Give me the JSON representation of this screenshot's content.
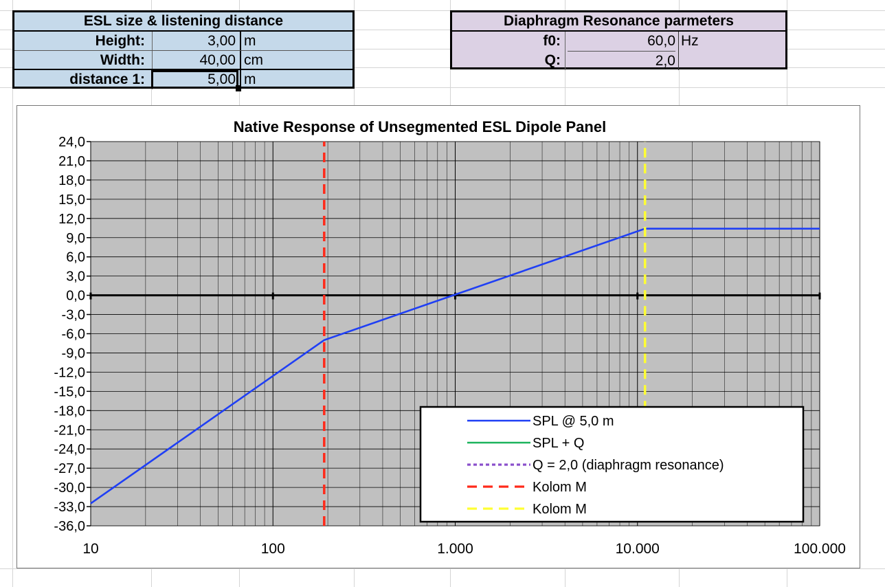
{
  "size_table": {
    "title": "ESL size & listening distance",
    "rows": [
      {
        "label": "Height:",
        "value": "3,00",
        "unit": "m"
      },
      {
        "label": "Width:",
        "value": "40,00",
        "unit": "cm"
      },
      {
        "label": "distance 1:",
        "value": "5,00",
        "unit": "m"
      }
    ]
  },
  "resonance_table": {
    "title": "Diaphragm Resonance parmeters",
    "rows": [
      {
        "label": "f0:",
        "value": "60,0",
        "unit": "Hz"
      },
      {
        "label": "Q:",
        "value": "2,0",
        "unit": ""
      }
    ]
  },
  "colors": {
    "size_table_bg": "#c5d9ea",
    "resonance_table_bg": "#dcd1e4",
    "plot_bg": "#c0c0c0",
    "spl": "#1f3ff5",
    "spl_q": "#1bb35c",
    "q_line": "#8a4fcc",
    "kolom1": "#ff2a1a",
    "kolom2": "#ffff33"
  },
  "chart_data": {
    "type": "line",
    "title": "Native Response of Unsegmented ESL Dipole Panel",
    "xlabel": "",
    "ylabel": "",
    "xscale": "log",
    "xlim": [
      10,
      100000
    ],
    "ylim": [
      -36,
      24
    ],
    "ytick_step": 3,
    "x_tick_labels": [
      "10",
      "100",
      "1.000",
      "10.000",
      "100.000"
    ],
    "y_tick_labels": [
      "24,0",
      "21,0",
      "18,0",
      "15,0",
      "12,0",
      "9,0",
      "6,0",
      "3,0",
      "0,0",
      "-3,0",
      "-6,0",
      "-9,0",
      "-12,0",
      "-15,0",
      "-18,0",
      "-21,0",
      "-24,0",
      "-27,0",
      "-30,0",
      "-33,0",
      "-36,0"
    ],
    "grid": true,
    "legend_position": "bottom-right",
    "series": [
      {
        "name": "SPL @ 5,0 m",
        "style": "solid",
        "color": "#1f3ff5",
        "x": [
          10,
          191,
          11000,
          100000
        ],
        "y": [
          -32.5,
          -7.0,
          10.4,
          10.4
        ]
      },
      {
        "name": "SPL + Q",
        "style": "solid",
        "color": "#1bb35c",
        "x": [],
        "y": []
      },
      {
        "name": "Q = 2,0 (diaphragm resonance)",
        "style": "dotted",
        "color": "#8a4fcc",
        "x": [],
        "y": []
      },
      {
        "name": "Kolom M",
        "style": "dashed",
        "color": "#ff2a1a",
        "x": [
          191,
          191
        ],
        "y": [
          -36,
          24
        ]
      },
      {
        "name": "Kolom M",
        "style": "dashed",
        "color": "#ffff33",
        "x": [
          11000,
          11000
        ],
        "y": [
          -18,
          24
        ]
      }
    ]
  }
}
